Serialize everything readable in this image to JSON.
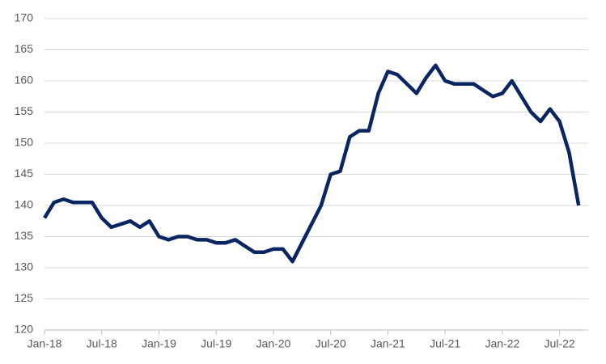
{
  "chart_data": {
    "type": "line",
    "x": [
      "2018-01",
      "2018-02",
      "2018-03",
      "2018-04",
      "2018-05",
      "2018-06",
      "2018-07",
      "2018-08",
      "2018-09",
      "2018-10",
      "2018-11",
      "2018-12",
      "2019-01",
      "2019-02",
      "2019-03",
      "2019-04",
      "2019-05",
      "2019-06",
      "2019-07",
      "2019-08",
      "2019-09",
      "2019-10",
      "2019-11",
      "2019-12",
      "2020-01",
      "2020-02",
      "2020-03",
      "2020-04",
      "2020-05",
      "2020-06",
      "2020-07",
      "2020-08",
      "2020-09",
      "2020-10",
      "2020-11",
      "2020-12",
      "2021-01",
      "2021-02",
      "2021-03",
      "2021-04",
      "2021-05",
      "2021-06",
      "2021-07",
      "2021-08",
      "2021-09",
      "2021-10",
      "2021-11",
      "2021-12",
      "2022-01",
      "2022-02",
      "2022-03",
      "2022-04",
      "2022-05",
      "2022-06",
      "2022-07",
      "2022-08",
      "2022-09"
    ],
    "series": [
      {
        "color": "#0b2462",
        "values": [
          138,
          140.5,
          141,
          140.5,
          140.5,
          140.5,
          138,
          136.5,
          137,
          137.5,
          136.5,
          137.5,
          135,
          134.5,
          135,
          135,
          134.5,
          134.5,
          134,
          134,
          134.5,
          133.5,
          132.5,
          132.5,
          133,
          133,
          131,
          134,
          137,
          140,
          145,
          145.5,
          151,
          152,
          152,
          158,
          161.5,
          161,
          159.5,
          158,
          160.5,
          162.5,
          160,
          159.5,
          159.5,
          159.5,
          158.5,
          157.5,
          158,
          160,
          157.5,
          155,
          153.5,
          155.5,
          153.5,
          148.5,
          140
        ]
      }
    ],
    "xlim": [
      "2018-01",
      "2022-10"
    ],
    "xticks": [
      {
        "value": "2018-01",
        "label": "Jan-18"
      },
      {
        "value": "2018-07",
        "label": "Jul-18"
      },
      {
        "value": "2019-01",
        "label": "Jan-19"
      },
      {
        "value": "2019-07",
        "label": "Jul-19"
      },
      {
        "value": "2020-01",
        "label": "Jan-20"
      },
      {
        "value": "2020-07",
        "label": "Jul-20"
      },
      {
        "value": "2021-01",
        "label": "Jan-21"
      },
      {
        "value": "2021-07",
        "label": "Jul-21"
      },
      {
        "value": "2022-01",
        "label": "Jan-22"
      },
      {
        "value": "2022-07",
        "label": "Jul-22"
      }
    ],
    "ylim": [
      120,
      170
    ],
    "yticks": [
      120,
      125,
      130,
      135,
      140,
      145,
      150,
      155,
      160,
      165,
      170
    ],
    "grid": true
  }
}
